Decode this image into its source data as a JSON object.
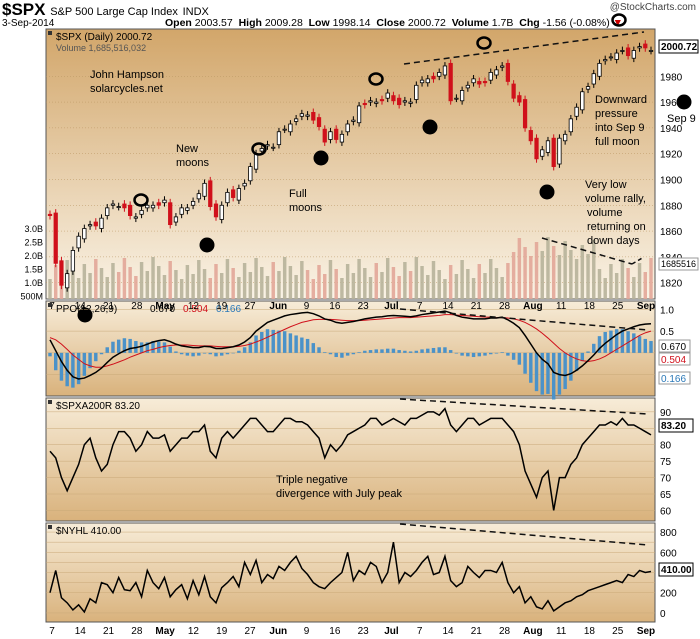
{
  "header": {
    "symbol": "$SPX",
    "name": "S&P 500 Large Cap Index",
    "exchange": "INDX",
    "brand": "@StockCharts.com",
    "date": "3-Sep-2014",
    "open_label": "Open",
    "open": "2003.57",
    "high_label": "High",
    "high": "2009.28",
    "low_label": "Low",
    "low": "1998.14",
    "close_label": "Close",
    "close": "2000.72",
    "volume_label": "Volume",
    "volume": "1.7B",
    "chg_label": "Chg",
    "chg": "-1.56",
    "chg_pct": "(-0.08%)"
  },
  "chart_data": [
    {
      "type": "candlestick",
      "legend": "$SPX (Daily) 2000.72",
      "legend2": "Volume 1,685,516,032",
      "x_labels": [
        "7",
        "14",
        "21",
        "28",
        "May",
        "12",
        "19",
        "27",
        "Jun",
        "9",
        "16",
        "23",
        "Jul",
        "7",
        "14",
        "21",
        "28",
        "Aug",
        "11",
        "18",
        "25",
        "Sep"
      ],
      "y_ticks": [
        1820,
        1840,
        1860,
        1880,
        1900,
        1920,
        1940,
        1960,
        1980
      ],
      "ylim": [
        1812,
        2012
      ],
      "close_series": [
        1872,
        1835,
        1818,
        1827,
        1845,
        1856,
        1862,
        1865,
        1864,
        1870,
        1878,
        1881,
        1879,
        1878,
        1872,
        1871,
        1876,
        1880,
        1880,
        1880,
        1884,
        1865,
        1871,
        1878,
        1878,
        1883,
        1889,
        1897,
        1879,
        1871,
        1880,
        1890,
        1886,
        1893,
        1897,
        1910,
        1920,
        1924,
        1927,
        1925,
        1937,
        1939,
        1943,
        1947,
        1951,
        1950,
        1946,
        1941,
        1929,
        1937,
        1931,
        1935,
        1943,
        1946,
        1957,
        1958,
        1961,
        1960,
        1961,
        1967,
        1961,
        1958,
        1961,
        1960,
        1973,
        1977,
        1978,
        1978,
        1983,
        1988,
        1961,
        1963,
        1969,
        1973,
        1978,
        1974,
        1975,
        1983,
        1985,
        1988,
        1976,
        1963,
        1960,
        1940,
        1930,
        1916,
        1923,
        1930,
        1910,
        1932,
        1935,
        1947,
        1956,
        1968,
        1972,
        1982,
        1990,
        1993,
        1995,
        1998,
        2000,
        1996,
        2000,
        2003,
        2002,
        2000
      ],
      "y_axis_badge": "2000.72",
      "volume_ticks": [
        "3.0B",
        "2.5B",
        "2.0B",
        "1.5B",
        "1.0B",
        "500M"
      ],
      "volume_badge": "1685516",
      "annotations": [
        "John Hampson",
        "solarcycles.net",
        "New",
        "moons",
        "Full",
        "moons",
        "Downward",
        "pressure",
        "into Sep 9",
        "full moon",
        "Very low",
        "volume rally,",
        "volume",
        "returning on",
        "down days"
      ],
      "side_label": "Sep 9"
    },
    {
      "type": "line",
      "legend": "PPO(12,26,9)",
      "legend_values": [
        "0.670",
        "0.504",
        "0.166"
      ],
      "y_ticks": [
        "1.0",
        "0.5",
        "0.0",
        "-0.5"
      ],
      "ylim": [
        -0.9,
        1.1
      ],
      "series": [
        {
          "values": [
            0.3,
            0.05,
            -0.2,
            -0.4,
            -0.55,
            -0.6,
            -0.58,
            -0.52,
            -0.45,
            -0.35,
            -0.22,
            -0.1,
            -0.02,
            0.05,
            0.1,
            0.12,
            0.15,
            0.2,
            0.25,
            0.28,
            0.3,
            0.26,
            0.2,
            0.16,
            0.14,
            0.12,
            0.12,
            0.15,
            0.14,
            0.1,
            0.1,
            0.12,
            0.14,
            0.18,
            0.25,
            0.35,
            0.5,
            0.6,
            0.7,
            0.75,
            0.8,
            0.85,
            0.88,
            0.9,
            0.92,
            0.93,
            0.9,
            0.85,
            0.78,
            0.75,
            0.7,
            0.68,
            0.7,
            0.72,
            0.75,
            0.78,
            0.8,
            0.82,
            0.83,
            0.85,
            0.86,
            0.85,
            0.84,
            0.83,
            0.85,
            0.88,
            0.9,
            0.92,
            0.94,
            0.96,
            0.92,
            0.86,
            0.82,
            0.8,
            0.78,
            0.78,
            0.78,
            0.8,
            0.8,
            0.82,
            0.76,
            0.68,
            0.58,
            0.4,
            0.2,
            0.0,
            -0.15,
            -0.25,
            -0.45,
            -0.5,
            -0.52,
            -0.48,
            -0.4,
            -0.3,
            -0.18,
            -0.05,
            0.1,
            0.22,
            0.32,
            0.42,
            0.5,
            0.55,
            0.6,
            0.64,
            0.66,
            0.67
          ]
        },
        {
          "values": [
            0.35,
            0.3,
            0.2,
            0.08,
            -0.05,
            -0.15,
            -0.25,
            -0.3,
            -0.33,
            -0.33,
            -0.3,
            -0.26,
            -0.21,
            -0.16,
            -0.1,
            -0.05,
            0.0,
            0.05,
            0.08,
            0.12,
            0.15,
            0.17,
            0.18,
            0.18,
            0.18,
            0.17,
            0.16,
            0.16,
            0.16,
            0.15,
            0.14,
            0.14,
            0.14,
            0.15,
            0.17,
            0.2,
            0.25,
            0.3,
            0.36,
            0.42,
            0.48,
            0.54,
            0.6,
            0.65,
            0.7,
            0.73,
            0.76,
            0.77,
            0.77,
            0.77,
            0.76,
            0.75,
            0.74,
            0.74,
            0.74,
            0.75,
            0.76,
            0.77,
            0.78,
            0.79,
            0.8,
            0.81,
            0.81,
            0.81,
            0.82,
            0.83,
            0.84,
            0.85,
            0.86,
            0.88,
            0.88,
            0.87,
            0.86,
            0.85,
            0.84,
            0.83,
            0.82,
            0.82,
            0.81,
            0.81,
            0.8,
            0.78,
            0.75,
            0.7,
            0.63,
            0.55,
            0.45,
            0.34,
            0.22,
            0.1,
            -0.0,
            -0.08,
            -0.14,
            -0.18,
            -0.2,
            -0.18,
            -0.14,
            -0.08,
            -0.0,
            0.08,
            0.16,
            0.24,
            0.32,
            0.4,
            0.46,
            0.5
          ]
        }
      ],
      "histogram_note": "PPO minus signal"
    },
    {
      "type": "line",
      "legend": "$SPXA200R 83.20",
      "y_ticks": [
        60,
        65,
        70,
        75,
        80,
        85,
        90
      ],
      "ylim": [
        58,
        93
      ],
      "y_axis_badge": "83.20",
      "values": [
        78,
        76,
        70,
        66,
        70,
        74,
        80,
        82,
        76,
        72,
        74,
        80,
        84,
        84,
        82,
        78,
        80,
        84,
        82,
        82,
        83,
        78,
        80,
        82,
        82,
        84,
        84,
        86,
        78,
        76,
        82,
        84,
        82,
        84,
        86,
        88,
        88,
        86,
        84,
        84,
        86,
        88,
        88,
        87,
        87,
        86,
        84,
        82,
        76,
        80,
        78,
        80,
        83,
        84,
        85,
        86,
        88,
        88,
        86,
        87,
        88,
        87,
        86,
        88,
        88,
        89,
        90,
        90,
        89,
        91,
        86,
        84,
        86,
        88,
        88,
        86,
        87,
        88,
        88,
        88,
        86,
        84,
        80,
        72,
        68,
        64,
        70,
        72,
        60,
        70,
        70,
        74,
        76,
        80,
        82,
        84,
        86,
        86,
        87,
        86,
        88,
        86,
        86,
        85,
        84,
        83
      ],
      "annotation": [
        "Triple negative",
        "divergence with July peak"
      ]
    },
    {
      "type": "line",
      "legend": "$NYHL 410.00",
      "y_ticks": [
        0,
        200,
        300,
        400,
        500,
        600,
        700,
        800
      ],
      "y_tick_labels": [
        "0",
        "200",
        "400",
        "600",
        "800"
      ],
      "ylim": [
        -50,
        850
      ],
      "y_axis_badge": "410.00",
      "values": [
        200,
        420,
        150,
        100,
        30,
        80,
        10,
        140,
        100,
        300,
        280,
        200,
        350,
        230,
        220,
        300,
        160,
        420,
        300,
        240,
        350,
        160,
        230,
        280,
        140,
        320,
        180,
        360,
        160,
        100,
        250,
        300,
        360,
        260,
        500,
        380,
        520,
        300,
        380,
        340,
        460,
        420,
        500,
        560,
        440,
        380,
        300,
        260,
        240,
        300,
        350,
        400,
        600,
        320,
        420,
        380,
        500,
        460,
        300,
        400,
        700,
        300,
        400,
        360,
        420,
        500,
        560,
        380,
        400,
        560,
        320,
        260,
        300,
        460,
        400,
        350,
        420,
        420,
        400,
        500,
        300,
        200,
        260,
        100,
        160,
        60,
        40,
        120,
        20,
        60,
        100,
        120,
        160,
        180,
        220,
        240,
        260,
        280,
        300,
        320,
        300,
        380,
        360,
        420,
        400,
        410
      ]
    }
  ]
}
